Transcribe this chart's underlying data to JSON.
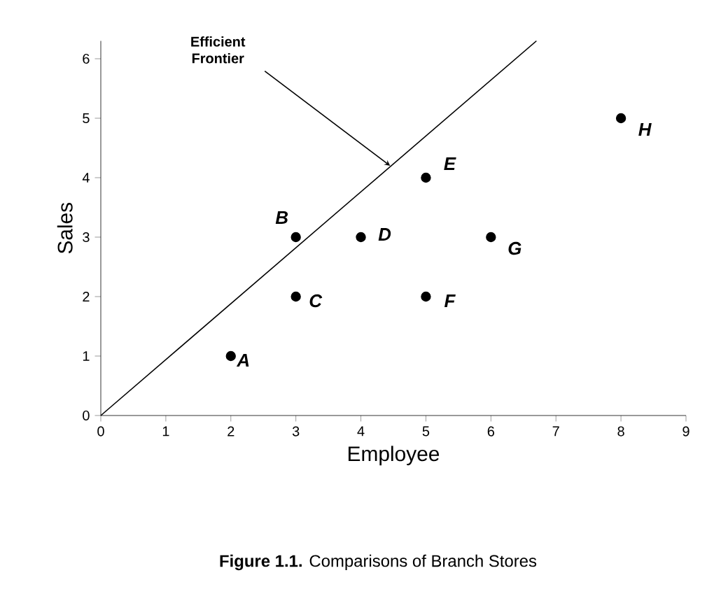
{
  "chart_data": {
    "type": "scatter",
    "xlabel": "Employee",
    "ylabel": "Sales",
    "xlim": [
      0,
      9
    ],
    "ylim": [
      0,
      6.3
    ],
    "xticks": [
      0,
      1,
      2,
      3,
      4,
      5,
      6,
      7,
      8,
      9
    ],
    "yticks": [
      0,
      1,
      2,
      3,
      4,
      5,
      6
    ],
    "marker": "circle",
    "grid": false,
    "series": [
      {
        "color": "#000000",
        "x": [
          2,
          3,
          3,
          4,
          5,
          5,
          6,
          8
        ],
        "values": [
          1,
          3,
          2,
          3,
          4,
          2,
          3,
          5
        ]
      },
      {
        "type": "line",
        "color": "#000000",
        "marker": "none",
        "x": [
          0,
          6.7
        ],
        "values": [
          0,
          6.3
        ]
      }
    ],
    "annotations": [
      {
        "text": "A",
        "x": 2,
        "y": 1
      },
      {
        "text": "B",
        "x": 3,
        "y": 3
      },
      {
        "text": "C",
        "x": 3,
        "y": 2
      },
      {
        "text": "D",
        "x": 4,
        "y": 3
      },
      {
        "text": "E",
        "x": 5,
        "y": 4
      },
      {
        "text": "F",
        "x": 5,
        "y": 2
      },
      {
        "text": "G",
        "x": 6,
        "y": 3
      },
      {
        "text": "H",
        "x": 8,
        "y": 5
      },
      "Efficient Frontier",
      "**Figure 1.1.**     Comparisons of Branch Stores"
    ]
  }
}
